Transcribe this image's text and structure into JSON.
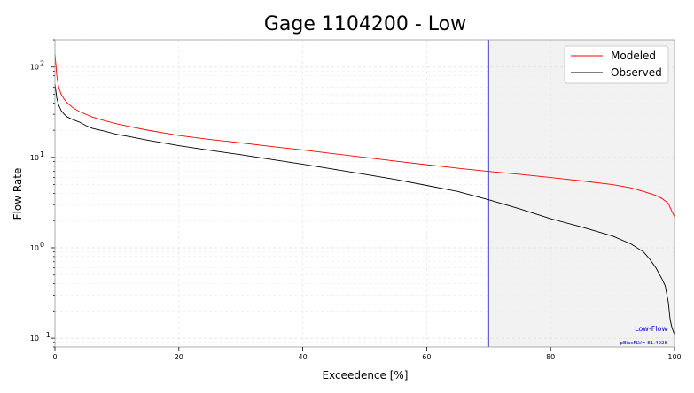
{
  "chart_data": {
    "type": "line",
    "title": "Gage 1104200 - Low",
    "xlabel": "Exceedence [%]",
    "ylabel": "Flow Rate",
    "xlim": [
      0,
      100
    ],
    "ylim": [
      0.08,
      200
    ],
    "yscale": "log",
    "x_ticks": [
      0,
      20,
      40,
      60,
      80,
      100
    ],
    "x_tick_labels": [
      "0",
      "20",
      "40",
      "60",
      "80",
      "100"
    ],
    "y_ticks": [
      0.1,
      1,
      10,
      100
    ],
    "y_tick_labels": [
      "10",
      "10",
      "10",
      "10"
    ],
    "y_tick_exponents": [
      "−1",
      "0",
      "1",
      "2"
    ],
    "grid": true,
    "legend_position": "top-right",
    "series": [
      {
        "name": "Modeled",
        "color": "#ff0000",
        "x": [
          0,
          0.3,
          0.6,
          1,
          1.5,
          2,
          3,
          4,
          5,
          6,
          8,
          10,
          12,
          15,
          20,
          25,
          30,
          35,
          40,
          45,
          50,
          55,
          60,
          65,
          70,
          75,
          80,
          85,
          90,
          93,
          95,
          97,
          98,
          99,
          99.5,
          100
        ],
        "y": [
          140,
          80,
          60,
          50,
          44,
          40,
          35,
          32,
          30,
          28,
          25.5,
          23.5,
          22,
          20,
          17.5,
          15.8,
          14.5,
          13.2,
          12.1,
          11,
          10,
          9.1,
          8.3,
          7.6,
          7,
          6.5,
          6,
          5.5,
          5,
          4.6,
          4.2,
          3.8,
          3.5,
          3.1,
          2.6,
          2.2
        ]
      },
      {
        "name": "Observed",
        "color": "#000000",
        "x": [
          0,
          0.3,
          0.6,
          1,
          1.5,
          2,
          3,
          4,
          5,
          6,
          8,
          10,
          12,
          15,
          20,
          25,
          30,
          35,
          40,
          45,
          50,
          55,
          60,
          65,
          70,
          75,
          80,
          85,
          90,
          93,
          95,
          96,
          97,
          98,
          98.5,
          99,
          99.3,
          99.6,
          100
        ],
        "y": [
          65,
          45,
          38,
          33,
          30,
          28,
          26,
          24.5,
          22.5,
          21,
          19.5,
          18,
          17,
          15.5,
          13.5,
          12,
          10.7,
          9.5,
          8.4,
          7.4,
          6.5,
          5.7,
          4.9,
          4.2,
          3.4,
          2.7,
          2.1,
          1.7,
          1.35,
          1.1,
          0.9,
          0.75,
          0.6,
          0.45,
          0.38,
          0.25,
          0.16,
          0.13,
          0.11
        ]
      }
    ],
    "threshold_x": 70,
    "annotations": {
      "region_label": "Low-Flow",
      "metric_label": "pBiasFLV= 81.4928"
    }
  }
}
